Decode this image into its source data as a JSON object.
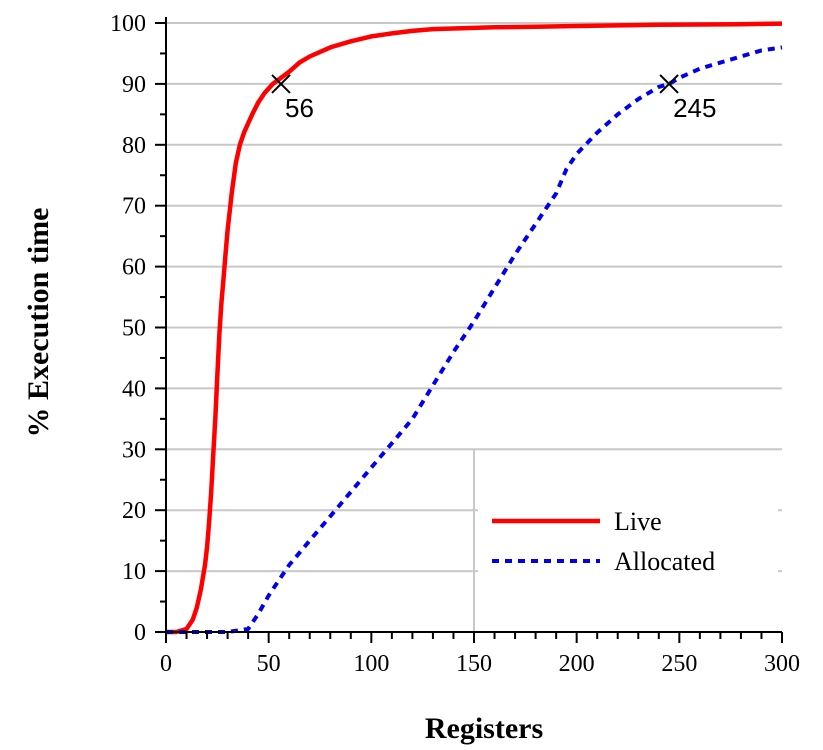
{
  "chart_data": {
    "type": "line",
    "title": "",
    "xlabel": "Registers",
    "ylabel": "% Execution time",
    "xlim": [
      0,
      300
    ],
    "ylim": [
      0,
      100
    ],
    "x_ticks": [
      0,
      50,
      100,
      150,
      200,
      250,
      300
    ],
    "y_ticks": [
      0,
      10,
      20,
      30,
      40,
      50,
      60,
      70,
      80,
      90,
      100
    ],
    "grid": "horizontal",
    "legend_position": "bottom-right",
    "series": [
      {
        "name": "Live",
        "color": "#ff0000",
        "style": "solid",
        "x": [
          0,
          5,
          10,
          13,
          15,
          17,
          19,
          20,
          21,
          22,
          23,
          24,
          25,
          26,
          27,
          28,
          29,
          30,
          32,
          34,
          36,
          38,
          40,
          42,
          45,
          48,
          52,
          56,
          60,
          65,
          70,
          80,
          90,
          100,
          110,
          120,
          130,
          140,
          150,
          160,
          180,
          200,
          220,
          240,
          260,
          280,
          300
        ],
        "y": [
          0,
          0,
          0.5,
          2,
          4,
          7,
          11,
          14,
          18,
          23,
          29,
          35,
          42,
          49,
          54,
          58,
          62,
          66,
          72,
          77,
          80,
          82,
          83.5,
          85,
          87,
          88.5,
          90,
          91,
          92,
          93.5,
          94.5,
          96,
          97,
          97.8,
          98.3,
          98.7,
          99,
          99.1,
          99.2,
          99.3,
          99.4,
          99.5,
          99.6,
          99.7,
          99.75,
          99.8,
          99.9
        ]
      },
      {
        "name": "Allocated",
        "color": "#0000ee",
        "style": "dotted",
        "x": [
          0,
          10,
          20,
          30,
          40,
          45,
          50,
          55,
          60,
          70,
          80,
          90,
          100,
          110,
          120,
          130,
          140,
          150,
          160,
          170,
          180,
          190,
          195,
          200,
          210,
          220,
          230,
          240,
          245,
          250,
          260,
          270,
          280,
          290,
          300
        ],
        "y": [
          0,
          0,
          0,
          0,
          0.5,
          3,
          6,
          8.5,
          11,
          15,
          19,
          23,
          27,
          31,
          35,
          40.5,
          46,
          51,
          56.5,
          62,
          67,
          72,
          76,
          78.5,
          82,
          85,
          87.5,
          89.5,
          90,
          91,
          92.5,
          93.5,
          94.5,
          95.5,
          96
        ]
      }
    ],
    "annotations": [
      {
        "x": 56,
        "y": 90,
        "label": "56",
        "marker": "x"
      },
      {
        "x": 245,
        "y": 90,
        "label": "245",
        "marker": "x"
      }
    ],
    "extra_gridlines": [
      {
        "x": 150,
        "y_from": 0,
        "y_to": 30
      }
    ]
  }
}
